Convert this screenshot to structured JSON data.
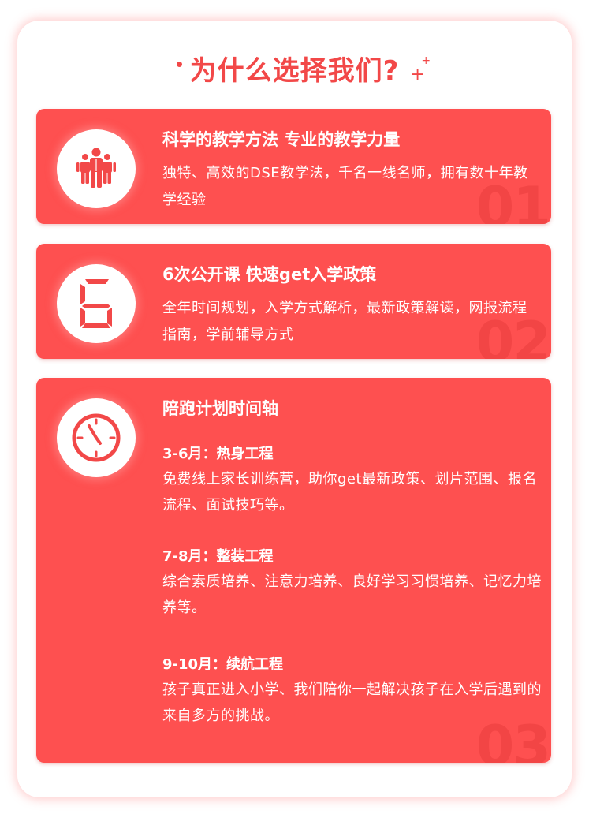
{
  "heading": {
    "title": "为什么选择我们?"
  },
  "colors": {
    "accent": "#f24848",
    "card": "#fe5050",
    "text_on_card": "#ffffff"
  },
  "cards": [
    {
      "icon": "people-group-icon",
      "title": "科学的教学方法 专业的教学力量",
      "body": "独特、高效的DSE教学法，千名一线名师，拥有数十年教学经验",
      "number": "01"
    },
    {
      "icon": "digit-six-icon",
      "title": "6次公开课 快速get入学政策",
      "body": "全年时间规划，入学方式解析，最新政策解读，网报流程指南，学前辅导方式",
      "number": "02"
    },
    {
      "icon": "clock-icon",
      "title": "陪跑计划时间轴",
      "number": "03",
      "sections": [
        {
          "heading": "3-6月：热身工程",
          "text": "免费线上家长训练营，助你get最新政策、划片范围、报名流程、面试技巧等。"
        },
        {
          "heading": "7-8月：整装工程",
          "text": "综合素质培养、注意力培养、良好学习习惯培养、记忆力培养等。"
        },
        {
          "heading": "9-10月：续航工程",
          "text": "孩子真正进入小学、我们陪你一起解决孩子在入学后遇到的来自多方的挑战。"
        }
      ]
    }
  ]
}
